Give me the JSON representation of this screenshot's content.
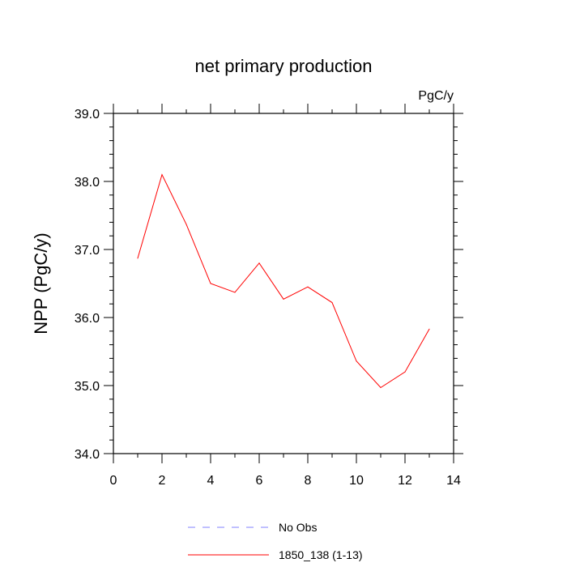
{
  "chart_data": {
    "type": "line",
    "title": "net primary production",
    "units_label": "PgC/y",
    "xlabel": "",
    "ylabel": "NPP  (PgC/y)",
    "xlim": [
      0,
      14
    ],
    "ylim": [
      34.0,
      39.0
    ],
    "x_ticks": [
      0,
      2,
      4,
      6,
      8,
      10,
      12,
      14
    ],
    "x_tick_labels": [
      "0",
      "2",
      "4",
      "6",
      "8",
      "10",
      "12",
      "14"
    ],
    "y_ticks": [
      34.0,
      35.0,
      36.0,
      37.0,
      38.0,
      39.0
    ],
    "y_tick_labels": [
      "34.0",
      "35.0",
      "36.0",
      "37.0",
      "38.0",
      "39.0"
    ],
    "grid": false,
    "series": [
      {
        "name": "1850_138 (1-13)",
        "color": "#ff0000",
        "style": "solid",
        "x": [
          1,
          2,
          3,
          4,
          5,
          6,
          7,
          8,
          9,
          10,
          11,
          12,
          13
        ],
        "values": [
          36.87,
          38.1,
          37.37,
          36.5,
          36.37,
          36.8,
          36.27,
          36.45,
          36.22,
          35.36,
          34.97,
          35.2,
          35.83
        ]
      }
    ],
    "legend": [
      {
        "label": "No Obs",
        "color": "#8080ff",
        "style": "dashed"
      },
      {
        "label": "1850_138 (1-13)",
        "color": "#ff0000",
        "style": "solid"
      }
    ],
    "legend_placement": "bottom"
  }
}
